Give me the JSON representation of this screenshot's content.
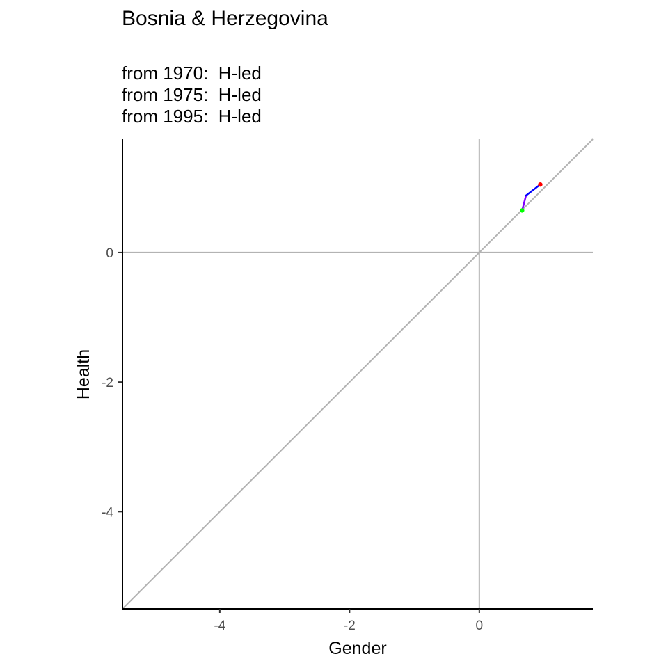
{
  "chart_data": {
    "type": "line",
    "title": "Bosnia & Herzegovina",
    "subtitle_lines": [
      "from 1970:  H-led",
      "from 1975:  H-led",
      "from 1995:  H-led"
    ],
    "xlabel": "Gender",
    "ylabel": "Health",
    "xlim": [
      -5.5,
      1.75
    ],
    "ylim": [
      -5.5,
      1.75
    ],
    "x_ticks": [
      -4,
      -2,
      0
    ],
    "y_ticks": [
      -4,
      -2,
      0
    ],
    "grid": false,
    "reference_lines": {
      "vertical_x": 0,
      "horizontal_y": 0,
      "diagonal": "y = x",
      "color": "#b3b3b3"
    },
    "path": [
      {
        "x": 0.66,
        "y": 0.65,
        "color": "#00ff00"
      },
      {
        "x": 0.72,
        "y": 0.88,
        "color": "#8000ff"
      },
      {
        "x": 0.94,
        "y": 1.05,
        "color": "#ff0000"
      }
    ],
    "segment_colors": [
      "#8000ff",
      "#0000ff"
    ],
    "start_marker_color": "#00ff00",
    "end_marker_color": "#ff0000"
  }
}
